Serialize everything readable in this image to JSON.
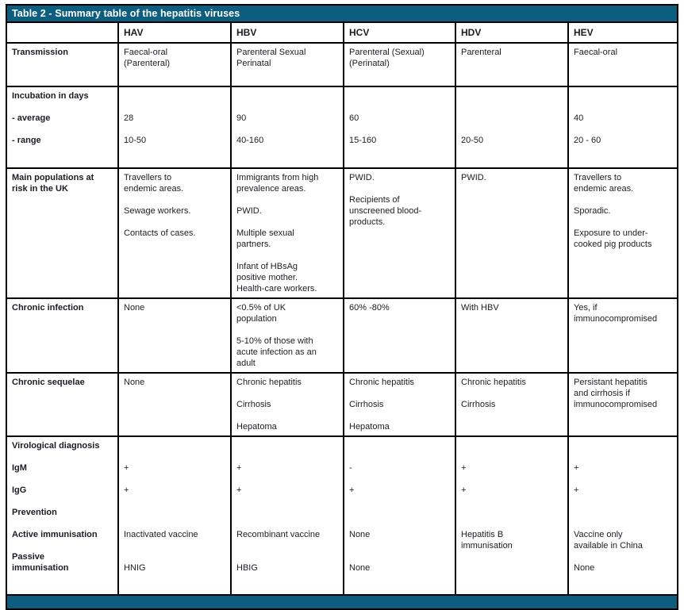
{
  "title": "Table 2 - Summary table of the hepatitis viruses",
  "accent_color": "#0d5d7f",
  "border_color": "#000000",
  "columns": [
    "",
    "HAV",
    "HBV",
    "HCV",
    "HDV",
    "HEV"
  ],
  "rows": [
    {
      "label": "Transmission",
      "cells": [
        "Faecal-oral\n(Parenteral)",
        "Parenteral Sexual\nPerinatal",
        "Parenteral (Sexual)\n(Perinatal)",
        "Parenteral",
        "Faecal-oral"
      ]
    },
    {
      "label": "Incubation in days\n\n- average\n\n- range",
      "cells": [
        "\n\n28\n\n10-50",
        "\n\n90\n\n40-160",
        "\n\n60\n\n15-160",
        "\n\n\n\n20-50",
        "\n\n40\n\n20 - 60"
      ]
    },
    {
      "label": "Main populations at\nrisk in the UK",
      "cells": [
        "Travellers to\nendemic areas.\n\nSewage workers.\n\nContacts of cases.",
        "Immigrants from high\nprevalence areas.\n\nPWID.\n\nMultiple sexual\npartners.\n\nInfant of HBsAg\npositive mother.\nHealth-care workers.",
        "PWID.\n\nRecipients of\nunscreened blood-\nproducts.",
        "PWID.",
        "Travellers to\nendemic areas.\n\nSporadic.\n\nExposure to under-\ncooked pig products"
      ]
    },
    {
      "label": "Chronic infection",
      "cells": [
        "None",
        "<0.5% of UK\npopulation\n\n5-10% of those with\nacute infection as an\nadult",
        "60% -80%",
        "With HBV",
        "Yes, if\nimmunocompromised"
      ]
    },
    {
      "label": "Chronic sequelae",
      "cells": [
        "None",
        "Chronic hepatitis\n\nCirrhosis\n\nHepatoma",
        "Chronic hepatitis\n\nCirrhosis\n\nHepatoma",
        "Chronic hepatitis\n\nCirrhosis",
        "Persistant hepatitis\nand cirrhosis if\nimmunocompromised"
      ]
    },
    {
      "label": "Virological diagnosis\n\nIgM\n\nIgG\n\nPrevention\n\nActive immunisation\n\nPassive\nimmunisation",
      "cells": [
        "\n\n+\n\n+\n\n\n\nInactivated vaccine\n\n\nHNIG",
        "\n\n+\n\n+\n\n\n\nRecombinant vaccine\n\n\nHBIG",
        "\n\n-\n\n+\n\n\n\nNone\n\n\nNone",
        "\n\n+\n\n+\n\n\n\nHepatitis B\nimmunisation",
        "\n\n+\n\n+\n\n\n\nVaccine only\navailable in China\n\nNone"
      ]
    }
  ]
}
